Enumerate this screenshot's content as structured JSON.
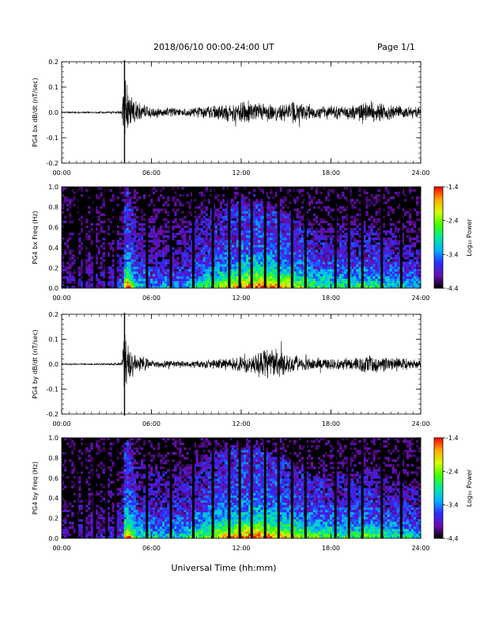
{
  "header": {
    "title": "2018/06/10  00:00-24:00 UT",
    "page": "Page 1/1"
  },
  "footer": {
    "xlabel": "Universal Time (hh:mm)"
  },
  "chart_data": [
    {
      "type": "line",
      "name": "bx-waveform",
      "ylabel": "PG4 bx dB/dt (nT/sec)",
      "xlim": [
        "00:00",
        "24:00"
      ],
      "ylim": [
        -0.2,
        0.2
      ],
      "x_ticks": [
        "00:00",
        "06:00",
        "12:00",
        "18:00",
        "24:00"
      ],
      "y_ticks": [
        "-0.2",
        "-0.1",
        "0.0",
        "0.1",
        "0.2"
      ],
      "x_hours": [
        0,
        3,
        4,
        4.2,
        4.4,
        4.6,
        5,
        6,
        8,
        10,
        12,
        14,
        15.5,
        17,
        19,
        20.3,
        22,
        24
      ],
      "amplitude": [
        0.003,
        0.004,
        0.006,
        0.2,
        0.1,
        0.07,
        0.05,
        0.025,
        0.018,
        0.03,
        0.05,
        0.04,
        0.05,
        0.03,
        0.03,
        0.05,
        0.035,
        0.025
      ]
    },
    {
      "type": "heatmap",
      "name": "bx-spectrogram",
      "ylabel": "PG4 bx Freq (Hz)",
      "xlim": [
        "00:00",
        "24:00"
      ],
      "ylim": [
        0.0,
        1.0
      ],
      "x_ticks": [
        "00:00",
        "06:00",
        "12:00",
        "18:00",
        "24:00"
      ],
      "y_ticks": [
        "0.0",
        "0.2",
        "0.4",
        "0.6",
        "0.8",
        "1.0"
      ],
      "colorbar": {
        "label": "Log₁₀ Power",
        "ticks": [
          "-1.4",
          "-2.4",
          "-3.4",
          "-4.4"
        ],
        "range": [
          -4.4,
          -1.4
        ],
        "colors": [
          "#000000",
          "#6a0dad",
          "#2a2cff",
          "#00b4ff",
          "#00e8a0",
          "#3cff00",
          "#d4ff00",
          "#ffaa00",
          "#ff0000"
        ]
      },
      "data_gaps_hours": [
        1.0,
        1.5,
        2.2,
        3.0,
        3.6,
        5.7,
        7.3,
        8.8,
        10.1,
        11.2,
        11.9,
        12.7,
        13.6,
        14.5,
        15.4,
        16.3,
        18.3,
        19.2,
        20.1,
        21.4,
        22.7
      ],
      "activity_hours": [
        0,
        3,
        4.1,
        4.3,
        5,
        6,
        8,
        10,
        12,
        13.5,
        15,
        17,
        19,
        20.5,
        22,
        24
      ],
      "activity_level": [
        0.1,
        0.15,
        0.3,
        1.0,
        0.45,
        0.35,
        0.35,
        0.6,
        0.85,
        0.9,
        0.75,
        0.55,
        0.5,
        0.55,
        0.45,
        0.35
      ],
      "activity_max_freq": [
        0.3,
        0.35,
        0.5,
        1.0,
        0.6,
        0.55,
        0.55,
        0.75,
        0.85,
        0.8,
        0.7,
        0.55,
        0.55,
        0.6,
        0.5,
        0.4
      ]
    },
    {
      "type": "line",
      "name": "by-waveform",
      "ylabel": "PG4 by dB/dt (nT/sec)",
      "xlim": [
        "00:00",
        "24:00"
      ],
      "ylim": [
        -0.2,
        0.2
      ],
      "x_ticks": [
        "00:00",
        "06:00",
        "12:00",
        "18:00",
        "24:00"
      ],
      "y_ticks": [
        "-0.2",
        "-0.1",
        "0.0",
        "0.1",
        "0.2"
      ],
      "x_hours": [
        0,
        3,
        4,
        4.2,
        4.4,
        4.6,
        5,
        6,
        8,
        10,
        12,
        13,
        14.5,
        15,
        17,
        19.5,
        20.5,
        22,
        24
      ],
      "amplitude": [
        0.003,
        0.004,
        0.006,
        0.2,
        0.09,
        0.06,
        0.04,
        0.02,
        0.015,
        0.02,
        0.035,
        0.05,
        0.08,
        0.045,
        0.025,
        0.03,
        0.045,
        0.03,
        0.02
      ]
    },
    {
      "type": "heatmap",
      "name": "by-spectrogram",
      "ylabel": "PG4 by Freq (Hz)",
      "xlim": [
        "00:00",
        "24:00"
      ],
      "ylim": [
        0.0,
        1.0
      ],
      "x_ticks": [
        "00:00",
        "06:00",
        "12:00",
        "18:00",
        "24:00"
      ],
      "y_ticks": [
        "0.0",
        "0.2",
        "0.4",
        "0.6",
        "0.8",
        "1.0"
      ],
      "colorbar": {
        "label": "Log₁₀ Power",
        "ticks": [
          "-1.4",
          "-2.4",
          "-3.4",
          "-4.4"
        ],
        "range": [
          -4.4,
          -1.4
        ],
        "colors": [
          "#000000",
          "#6a0dad",
          "#2a2cff",
          "#00b4ff",
          "#00e8a0",
          "#3cff00",
          "#d4ff00",
          "#ffaa00",
          "#ff0000"
        ]
      },
      "data_gaps_hours": [
        1.0,
        1.5,
        2.2,
        3.0,
        3.6,
        5.7,
        7.3,
        8.8,
        10.1,
        11.2,
        11.9,
        12.7,
        13.6,
        14.5,
        15.4,
        16.3,
        18.3,
        19.2,
        20.1,
        21.4,
        22.7
      ],
      "activity_hours": [
        0,
        3,
        4.1,
        4.3,
        5,
        6,
        8,
        10,
        12,
        13.5,
        15,
        17,
        19,
        20.5,
        22,
        24
      ],
      "activity_level": [
        0.1,
        0.15,
        0.3,
        1.0,
        0.5,
        0.45,
        0.45,
        0.7,
        0.9,
        0.9,
        0.75,
        0.6,
        0.55,
        0.6,
        0.5,
        0.4
      ],
      "activity_max_freq": [
        0.3,
        0.35,
        0.5,
        1.0,
        0.7,
        0.65,
        0.65,
        0.8,
        0.9,
        0.85,
        0.75,
        0.6,
        0.6,
        0.65,
        0.55,
        0.45
      ]
    }
  ]
}
